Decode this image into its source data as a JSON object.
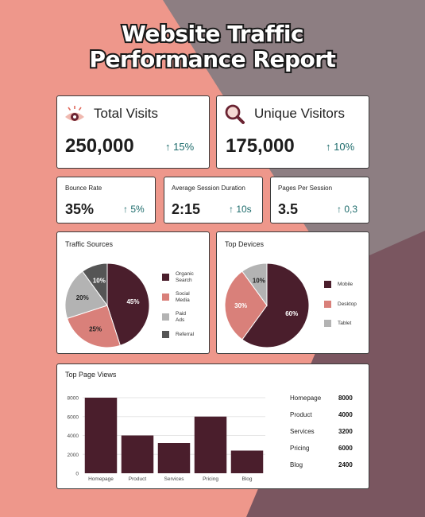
{
  "title_line1": "Website Traffic",
  "title_line2": "Performance Report",
  "total_visits": {
    "label": "Total Visits",
    "value": "250,000",
    "change": "↑ 15%"
  },
  "unique_visitors": {
    "label": "Unique Visitors",
    "value": "175,000",
    "change": "↑ 10%"
  },
  "bounce_rate": {
    "label": "Bounce Rate",
    "value": "35%",
    "change": "↑ 5%"
  },
  "avg_session": {
    "label": "Average Session Duration",
    "value": "2:15",
    "change": "↑ 10s"
  },
  "pages_per_session": {
    "label": "Pages Per Session",
    "value": "3.5",
    "change": "↑ 0,3"
  },
  "traffic_sources": {
    "title": "Traffic Sources",
    "legend": [
      {
        "line1": "Organic",
        "line2": "Search",
        "color": "#4a1e2c"
      },
      {
        "line1": "Social",
        "line2": "Media",
        "color": "#d9807a"
      },
      {
        "line1": "Paid",
        "line2": "Ads",
        "color": "#b3b3b3"
      },
      {
        "line1": "Referral",
        "line2": "",
        "color": "#555555"
      }
    ]
  },
  "top_devices": {
    "title": "Top Devices",
    "legend": [
      {
        "label": "Mobile",
        "color": "#4a1e2c"
      },
      {
        "label": "Desktop",
        "color": "#d9807a"
      },
      {
        "label": "Tablet",
        "color": "#b3b3b3"
      }
    ]
  },
  "top_page_views": {
    "title": "Top Page Views",
    "table": [
      {
        "page": "Homepage",
        "views": "8000"
      },
      {
        "page": "Product",
        "views": "4000"
      },
      {
        "page": "Services",
        "views": "3200"
      },
      {
        "page": "Pricing",
        "views": "6000"
      },
      {
        "page": "Blog",
        "views": "2400"
      }
    ]
  },
  "chart_data": [
    {
      "type": "pie",
      "title": "Traffic Sources",
      "categories": [
        "Organic Search",
        "Social Media",
        "Paid Ads",
        "Referral"
      ],
      "values": [
        45,
        25,
        20,
        10
      ],
      "labels": [
        "45%",
        "25%",
        "20%",
        "10%"
      ],
      "colors": [
        "#4a1e2c",
        "#d9807a",
        "#b3b3b3",
        "#555555"
      ],
      "label_colors": [
        "#ffffff",
        "#222222",
        "#222222",
        "#ffffff"
      ]
    },
    {
      "type": "pie",
      "title": "Top Devices",
      "categories": [
        "Mobile",
        "Desktop",
        "Tablet"
      ],
      "values": [
        60,
        30,
        10
      ],
      "labels": [
        "60%",
        "30%",
        "10%"
      ],
      "colors": [
        "#4a1e2c",
        "#d9807a",
        "#b3b3b3"
      ],
      "label_colors": [
        "#ffffff",
        "#ffffff",
        "#222222"
      ]
    },
    {
      "type": "bar",
      "title": "Top Page Views",
      "categories": [
        "Homepage",
        "Product",
        "Services",
        "Pricing",
        "Blog"
      ],
      "values": [
        8000,
        4000,
        3200,
        6000,
        2400
      ],
      "ylim": [
        0,
        8000
      ],
      "yticks": [
        "0",
        "2000",
        "4000",
        "6000",
        "8000"
      ],
      "grid": true,
      "color": "#4a1e2c"
    }
  ]
}
